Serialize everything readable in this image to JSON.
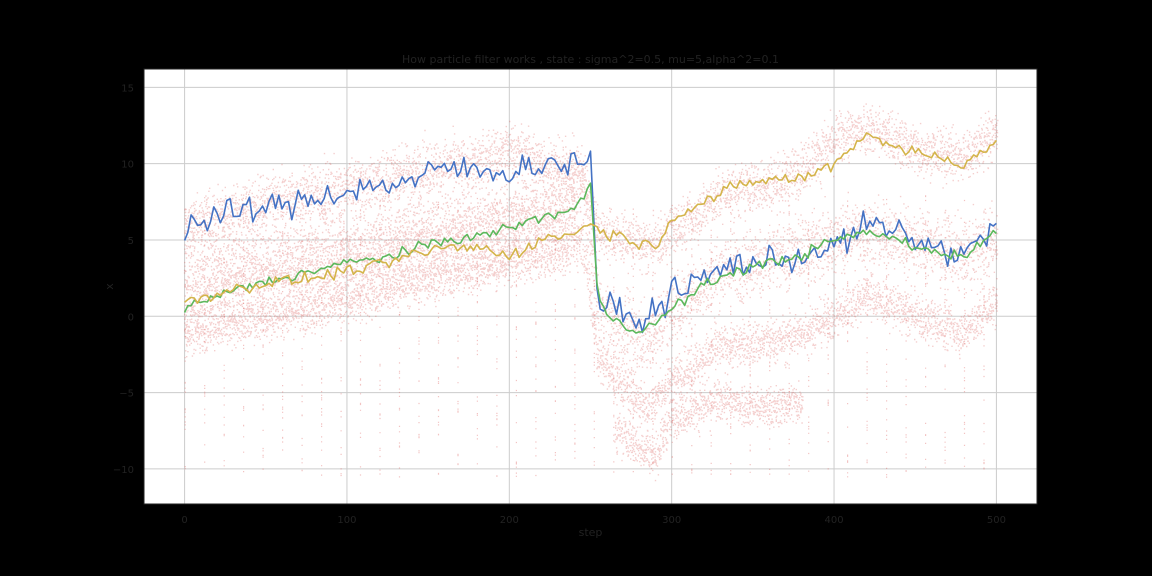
{
  "chart_data": {
    "type": "line",
    "title": "How particle filter works , state : sigma^2=0.5, mu=5,alpha^2=0.1",
    "xlabel": "step",
    "ylabel": "x",
    "xlim": [
      -25,
      525
    ],
    "ylim": [
      -12.3,
      16.2
    ],
    "xticks": [
      0,
      100,
      200,
      300,
      400,
      500
    ],
    "yticks": [
      -10,
      -5,
      0,
      5,
      10,
      15
    ],
    "grid": true,
    "colors": {
      "figure_bg": "#000000",
      "axes_bg": "#ffffff",
      "grid": "#cccccc",
      "particles": "#d9534f",
      "blue": "#4472c4",
      "green": "#5cb85c",
      "yellow": "#d4b44a"
    },
    "particle_bands": [
      {
        "x": [
          0,
          50,
          100,
          150,
          175,
          200,
          225,
          245,
          255,
          270,
          285,
          300,
          330,
          370,
          400,
          420,
          450,
          480,
          500
        ],
        "y": [
          6,
          7.5,
          8.5,
          9.8,
          10,
          11,
          10,
          9.5,
          5.5,
          5.2,
          4.5,
          5.5,
          8,
          9,
          11.5,
          12.5,
          11,
          10.5,
          12
        ],
        "spread": 1.4
      },
      {
        "x": [
          0,
          50,
          100,
          150,
          175,
          200,
          225,
          245,
          255,
          270,
          285,
          300,
          330,
          370,
          400,
          420,
          450,
          480,
          500
        ],
        "y": [
          1,
          2.5,
          3.5,
          5,
          5.2,
          6,
          6.5,
          8.5,
          0.5,
          -1,
          -1.5,
          0.5,
          3,
          4,
          5,
          5.5,
          5,
          4,
          5
        ],
        "spread": 1.8
      },
      {
        "x": [
          0,
          50,
          100,
          150,
          175,
          200,
          225,
          245,
          255,
          270,
          285,
          300,
          330,
          370,
          400,
          420,
          450,
          480,
          500
        ],
        "y": [
          -1,
          0,
          1,
          2.5,
          3,
          3.5,
          4,
          5,
          -3,
          -4.5,
          -6,
          -4,
          -2,
          -1.5,
          0,
          1.5,
          0,
          -1,
          1
        ],
        "spread": 1.2
      },
      {
        "x": [
          265,
          280,
          290,
          300,
          330,
          360,
          380
        ],
        "y": [
          -7.5,
          -8.5,
          -9,
          -6.5,
          -5.5,
          -6,
          -5.5
        ],
        "spread": 1.1
      },
      {
        "x": [
          0,
          50,
          100,
          150,
          200,
          240
        ],
        "y": [
          3.5,
          3.8,
          4.5,
          5.5,
          6.5,
          7.5
        ],
        "spread": 2.5
      }
    ],
    "resample_columns": {
      "start": 0,
      "end": 500,
      "step": 12,
      "ymin": -10.5,
      "ymax": 8
    },
    "series": [
      {
        "color": "#4472c4",
        "noise": 0.9,
        "x": [
          0,
          20,
          40,
          60,
          80,
          100,
          120,
          140,
          160,
          180,
          200,
          220,
          240,
          250,
          255,
          265,
          280,
          290,
          300,
          320,
          340,
          360,
          380,
          400,
          420,
          440,
          460,
          480,
          500
        ],
        "y": [
          5.8,
          6.5,
          7,
          7.2,
          7.8,
          8.2,
          8.6,
          8.8,
          9.8,
          9.5,
          9.5,
          10,
          10,
          10.5,
          0.5,
          0.5,
          -0.5,
          0.5,
          1.5,
          2.5,
          3.5,
          3.5,
          4,
          4.5,
          6,
          5.5,
          4.5,
          4,
          6
        ]
      },
      {
        "color": "#5cb85c",
        "noise": 0.35,
        "x": [
          0,
          20,
          40,
          60,
          80,
          100,
          120,
          140,
          160,
          180,
          200,
          220,
          240,
          250,
          255,
          265,
          280,
          290,
          300,
          320,
          340,
          360,
          380,
          400,
          420,
          440,
          460,
          480,
          500
        ],
        "y": [
          0.5,
          1.3,
          2,
          2.5,
          3,
          3.5,
          3.8,
          4.3,
          5,
          5.2,
          5.8,
          6.5,
          7,
          8.5,
          0.8,
          -0.2,
          -1,
          -0.5,
          0.5,
          2,
          3,
          3.5,
          4,
          5,
          5.5,
          5,
          4.2,
          4,
          5.5
        ]
      },
      {
        "color": "#d4b44a",
        "noise": 0.4,
        "x": [
          0,
          20,
          40,
          60,
          80,
          100,
          120,
          140,
          160,
          180,
          200,
          220,
          240,
          250,
          260,
          275,
          290,
          300,
          320,
          340,
          360,
          380,
          400,
          420,
          440,
          460,
          480,
          500
        ],
        "y": [
          1,
          1.5,
          2,
          2.3,
          2.5,
          3,
          3.3,
          4,
          4.5,
          4.5,
          4,
          5,
          5.5,
          6,
          5.5,
          5,
          4.5,
          6.5,
          7.5,
          8.5,
          9,
          9,
          10,
          12,
          11,
          10.5,
          10,
          11.5
        ]
      }
    ]
  }
}
